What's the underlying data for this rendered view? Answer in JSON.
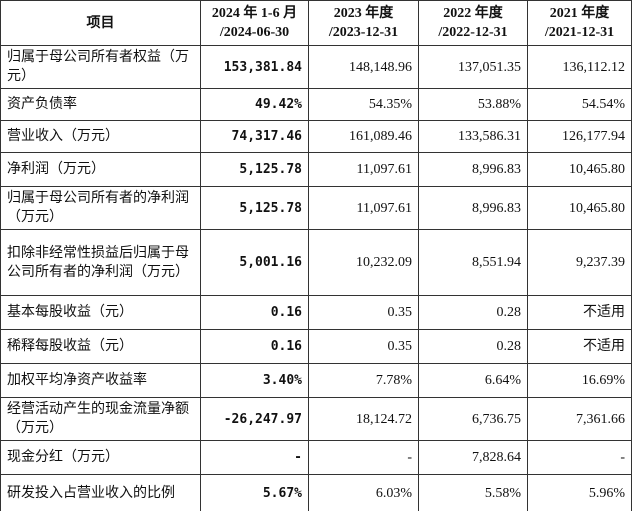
{
  "table": {
    "header": [
      "项目",
      "2024 年 1-6 月\n/2024-06-30",
      "2023 年度\n/2023-12-31",
      "2022 年度\n/2022-12-31",
      "2021 年度\n/2021-12-31"
    ],
    "rows": [
      [
        "归属于母公司所有者权益（万元）",
        "153,381.84",
        "148,148.96",
        "137,051.35",
        "136,112.12"
      ],
      [
        "资产负债率",
        "49.42%",
        "54.35%",
        "53.88%",
        "54.54%"
      ],
      [
        "营业收入（万元）",
        "74,317.46",
        "161,089.46",
        "133,586.31",
        "126,177.94"
      ],
      [
        "净利润（万元）",
        "5,125.78",
        "11,097.61",
        "8,996.83",
        "10,465.80"
      ],
      [
        "归属于母公司所有者的净利润（万元）",
        "5,125.78",
        "11,097.61",
        "8,996.83",
        "10,465.80"
      ],
      [
        "扣除非经常性损益后归属于母公司所有者的净利润（万元）",
        "5,001.16",
        "10,232.09",
        "8,551.94",
        "9,237.39"
      ],
      [
        "基本每股收益（元）",
        "0.16",
        "0.35",
        "0.28",
        "不适用"
      ],
      [
        "稀释每股收益（元）",
        "0.16",
        "0.35",
        "0.28",
        "不适用"
      ],
      [
        "加权平均净资产收益率",
        "3.40%",
        "7.78%",
        "6.64%",
        "16.69%"
      ],
      [
        "经营活动产生的现金流量净额（万元）",
        "-26,247.97",
        "18,124.72",
        "6,736.75",
        "7,361.66"
      ],
      [
        "现金分红（万元）",
        "-",
        "-",
        "7,828.64",
        "-"
      ],
      [
        "研发投入占营业收入的比例",
        "5.67%",
        "6.03%",
        "5.58%",
        "5.96%"
      ]
    ]
  }
}
